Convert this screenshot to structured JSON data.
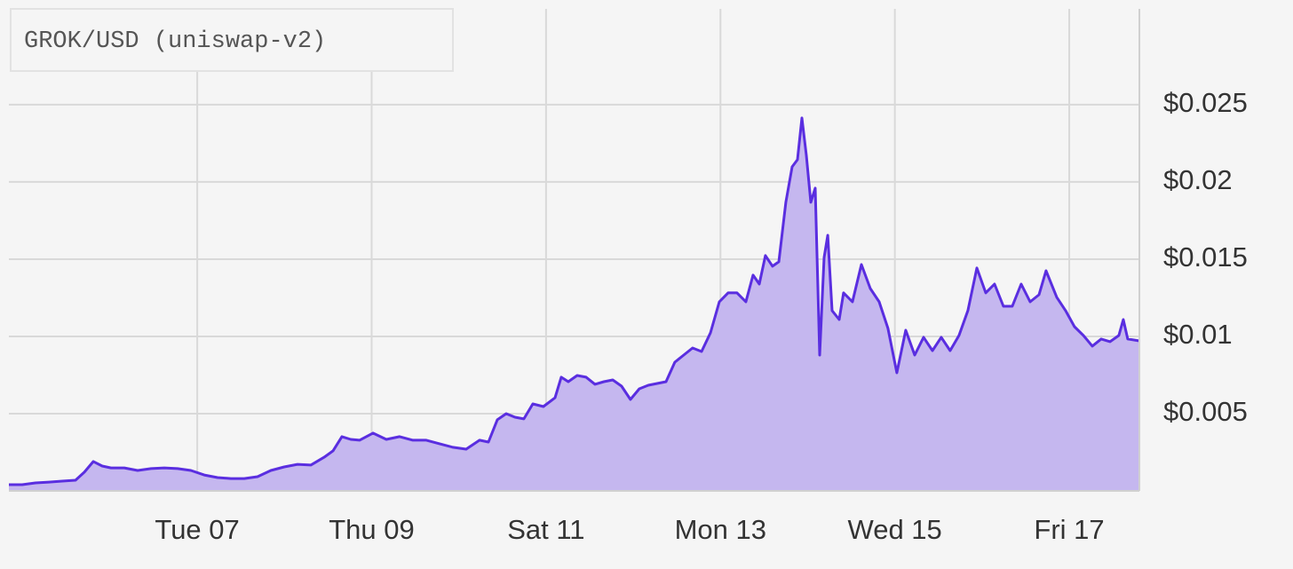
{
  "chart_data": {
    "type": "area",
    "title": "GROK/USD (uniswap-v2)",
    "color": "#5a2ee0",
    "area_color": "#c5b7ef",
    "grid": true,
    "x": [
      4.84,
      4.993,
      5.145,
      5.298,
      5.451,
      5.604,
      5.706,
      5.808,
      5.91,
      6.011,
      6.164,
      6.317,
      6.47,
      6.622,
      6.775,
      6.928,
      7.08,
      7.233,
      7.386,
      7.539,
      7.691,
      7.844,
      7.997,
      8.15,
      8.302,
      8.455,
      8.557,
      8.659,
      8.761,
      8.862,
      9.015,
      9.168,
      9.321,
      9.473,
      9.626,
      9.779,
      9.932,
      10.084,
      10.237,
      10.339,
      10.441,
      10.543,
      10.644,
      10.746,
      10.848,
      10.97,
      11.103,
      11.174,
      11.255,
      11.357,
      11.459,
      11.561,
      11.663,
      11.765,
      11.866,
      11.968,
      12.07,
      12.172,
      12.274,
      12.376,
      12.477,
      12.579,
      12.681,
      12.783,
      12.885,
      12.987,
      13.088,
      13.19,
      13.292,
      13.374,
      13.445,
      13.516,
      13.597,
      13.669,
      13.75,
      13.822,
      13.883,
      13.934,
      13.985,
      14.036,
      14.087,
      14.138,
      14.189,
      14.23,
      14.28,
      14.362,
      14.412,
      14.514,
      14.616,
      14.718,
      14.82,
      14.921,
      15.023,
      15.125,
      15.227,
      15.329,
      15.431,
      15.532,
      15.634,
      15.736,
      15.838,
      15.94,
      16.042,
      16.143,
      16.245,
      16.347,
      16.449,
      16.551,
      16.653,
      16.734,
      16.857,
      16.958,
      17.06,
      17.162,
      17.264,
      17.366,
      17.468,
      17.569,
      17.62,
      17.671,
      17.804
    ],
    "values": [
      0.0004,
      0.0004,
      0.00052,
      0.00057,
      0.00063,
      0.00069,
      0.00121,
      0.0019,
      0.00161,
      0.00149,
      0.00149,
      0.00132,
      0.00144,
      0.00149,
      0.00144,
      0.00132,
      0.00103,
      0.00086,
      0.0008,
      0.0008,
      0.00092,
      0.00132,
      0.00155,
      0.00172,
      0.00167,
      0.00218,
      0.00259,
      0.00351,
      0.00333,
      0.00328,
      0.00374,
      0.00333,
      0.00351,
      0.00328,
      0.00328,
      0.00305,
      0.00282,
      0.0027,
      0.00328,
      0.00316,
      0.0046,
      0.005,
      0.00477,
      0.00466,
      0.00563,
      0.00546,
      0.00603,
      0.00736,
      0.00707,
      0.00747,
      0.00736,
      0.0069,
      0.00707,
      0.00718,
      0.00678,
      0.00592,
      0.00661,
      0.00684,
      0.00695,
      0.00707,
      0.00833,
      0.00879,
      0.00925,
      0.00902,
      0.01023,
      0.01224,
      0.01282,
      0.01282,
      0.01224,
      0.01397,
      0.01339,
      0.01523,
      0.01454,
      0.01483,
      0.01868,
      0.02098,
      0.02144,
      0.02414,
      0.02172,
      0.01868,
      0.0196,
      0.00879,
      0.01511,
      0.01655,
      0.01167,
      0.01109,
      0.01282,
      0.01224,
      0.01465,
      0.0131,
      0.01224,
      0.01052,
      0.00764,
      0.0104,
      0.00879,
      0.00994,
      0.00908,
      0.00994,
      0.00908,
      0.01006,
      0.01167,
      0.01443,
      0.01282,
      0.01339,
      0.01195,
      0.01195,
      0.01339,
      0.01224,
      0.0127,
      0.01425,
      0.01253,
      0.01167,
      0.01063,
      0.01006,
      0.00937,
      0.00983,
      0.00966,
      0.01006,
      0.01109,
      0.00983,
      0.00971
    ],
    "xlim": [
      4.84,
      17.804
    ],
    "xticks": [
      {
        "value": 7,
        "label": "Tue 07"
      },
      {
        "value": 9,
        "label": "Thu 09"
      },
      {
        "value": 11,
        "label": "Sat 11"
      },
      {
        "value": 13,
        "label": "Mon 13"
      },
      {
        "value": 15,
        "label": "Wed 15"
      },
      {
        "value": 17,
        "label": "Fri 17"
      }
    ],
    "ylim": [
      0,
      0.0312
    ],
    "yticks": [
      {
        "value": 0.005,
        "label": "$0.005"
      },
      {
        "value": 0.01,
        "label": "$0.01"
      },
      {
        "value": 0.015,
        "label": "$0.015"
      },
      {
        "value": 0.02,
        "label": "$0.02"
      },
      {
        "value": 0.025,
        "label": "$0.025"
      }
    ]
  }
}
